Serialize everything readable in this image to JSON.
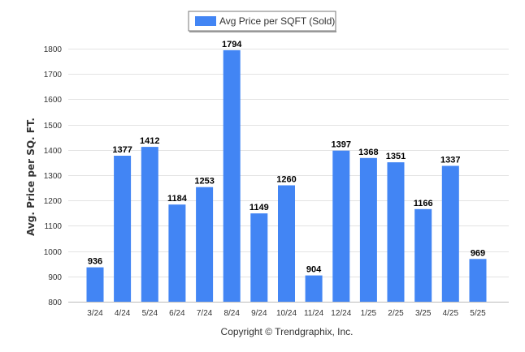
{
  "chart_data": {
    "type": "bar",
    "categories": [
      "3/24",
      "4/24",
      "5/24",
      "6/24",
      "7/24",
      "8/24",
      "9/24",
      "10/24",
      "11/24",
      "12/24",
      "1/25",
      "2/25",
      "3/25",
      "4/25",
      "5/25"
    ],
    "series": [
      {
        "name": "Avg Price per SQFT (Sold)",
        "values": [
          936,
          1377,
          1412,
          1184,
          1253,
          1794,
          1149,
          1260,
          904,
          1397,
          1368,
          1351,
          1166,
          1337,
          969
        ]
      }
    ],
    "ylabel": "Avg. Price per SQ. FT.",
    "xlabel": "",
    "ylim": [
      800,
      1800
    ],
    "yticks": [
      800,
      900,
      1000,
      1100,
      1200,
      1300,
      1400,
      1500,
      1600,
      1700,
      1800
    ],
    "grid": true,
    "legend": "top-center",
    "bar_color": "#4285f4",
    "data_labels": true
  },
  "footer": {
    "copyright": "Copyright © Trendgraphix, Inc."
  }
}
